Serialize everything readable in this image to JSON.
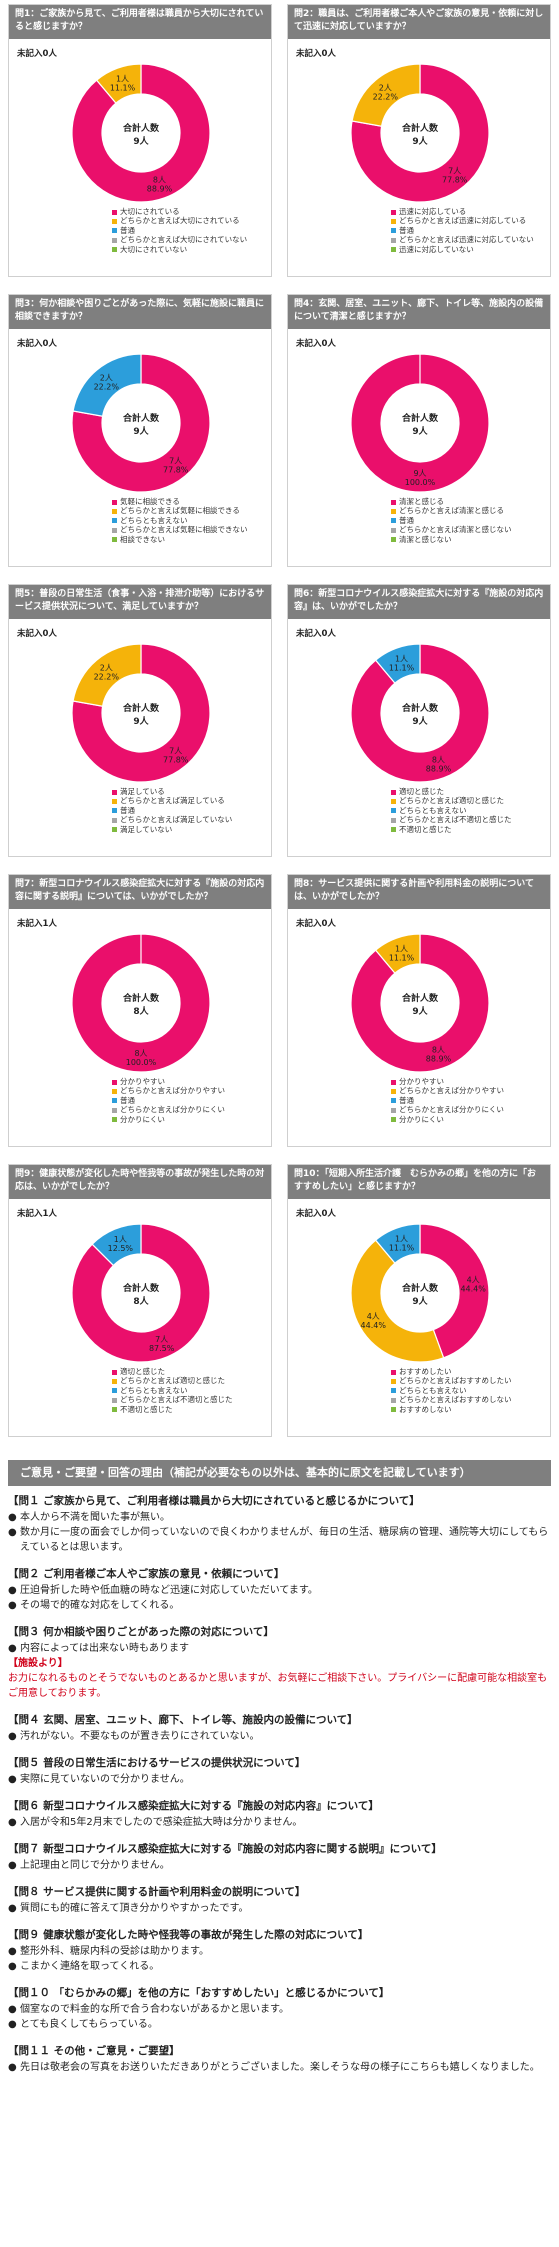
{
  "colors": {
    "pink": "#ea0f6b",
    "gold": "#f5b30a",
    "blue": "#2c9edb",
    "grey": "#a5a5a5",
    "green": "#7fba3e"
  },
  "total_label": "合計人数",
  "chart_data": [
    {
      "type": "pie",
      "title": "問1：ご家族から見て、ご利用者様は職員から大切にされていると感じますか？",
      "unrecorded": "未記入0人",
      "total": "9人",
      "categories": [
        "大切にされている",
        "どちらかと言えば大切にされている",
        "普通",
        "どちらかと言えば大切にされていない",
        "大切にされていない"
      ],
      "values": [
        8,
        1,
        0,
        0,
        0
      ],
      "value_labels": [
        "8人",
        "1人",
        "",
        "",
        ""
      ],
      "pct_labels": [
        "88.9%",
        "11.1%",
        "",
        "",
        ""
      ]
    },
    {
      "type": "pie",
      "title": "問2：職員は、ご利用者様ご本人やご家族の意見・依頼に対して迅速に対応していますか？",
      "unrecorded": "未記入0人",
      "total": "9人",
      "categories": [
        "迅速に対応している",
        "どちらかと言えば迅速に対応している",
        "普通",
        "どちらかと言えば迅速に対応していない",
        "迅速に対応していない"
      ],
      "values": [
        7,
        2,
        0,
        0,
        0
      ],
      "value_labels": [
        "7人",
        "2人",
        "",
        "",
        ""
      ],
      "pct_labels": [
        "77.8%",
        "22.2%",
        "",
        "",
        ""
      ]
    },
    {
      "type": "pie",
      "title": "問3：何か相談や困りごとがあった際に、気軽に施設に職員に相談できますか？",
      "unrecorded": "未記入0人",
      "total": "9人",
      "categories": [
        "気軽に相談できる",
        "どちらかと言えば気軽に相談できる",
        "どちらとも言えない",
        "どちらかと言えば気軽に相談できない",
        "相談できない"
      ],
      "values": [
        7,
        0,
        2,
        0,
        0
      ],
      "value_labels": [
        "7人",
        "",
        "2人",
        "",
        ""
      ],
      "pct_labels": [
        "77.8%",
        "",
        "22.2%",
        "",
        ""
      ]
    },
    {
      "type": "pie",
      "title": "問4：玄関、居室、ユニット、廊下、トイレ等、施設内の設備について清潔と感じますか？",
      "unrecorded": "未記入0人",
      "total": "9人",
      "categories": [
        "清潔と感じる",
        "どちらかと言えば清潔と感じる",
        "普通",
        "どちらかと言えば清潔と感じない",
        "清潔と感じない"
      ],
      "values": [
        9,
        0,
        0,
        0,
        0
      ],
      "value_labels": [
        "9人",
        "",
        "",
        "",
        ""
      ],
      "pct_labels": [
        "100.0%",
        "",
        "",
        "",
        ""
      ]
    },
    {
      "type": "pie",
      "title": "問5：普段の日常生活（食事・入浴・排泄介助等）におけるサービス提供状況について、満足していますか？",
      "unrecorded": "未記入0人",
      "total": "9人",
      "categories": [
        "満足している",
        "どちらかと言えば満足している",
        "普通",
        "どちらかと言えば満足していない",
        "満足していない"
      ],
      "values": [
        7,
        2,
        0,
        0,
        0
      ],
      "value_labels": [
        "7人",
        "2人",
        "",
        "",
        ""
      ],
      "pct_labels": [
        "77.8%",
        "22.2%",
        "",
        "",
        ""
      ]
    },
    {
      "type": "pie",
      "title": "問6：新型コロナウイルス感染症拡大に対する『施設の対応内容』は、いかがでしたか？",
      "unrecorded": "未記入0人",
      "total": "9人",
      "categories": [
        "適切と感じた",
        "どちらかと言えば適切と感じた",
        "どちらとも言えない",
        "どちらかと言えば不適切と感じた",
        "不適切と感じた"
      ],
      "values": [
        8,
        0,
        1,
        0,
        0
      ],
      "value_labels": [
        "8人",
        "",
        "1人",
        "",
        ""
      ],
      "pct_labels": [
        "88.9%",
        "",
        "11.1%",
        "",
        ""
      ]
    },
    {
      "type": "pie",
      "title": "問7：新型コロナウイルス感染症拡大に対する『施設の対応内容に関する説明』については、いかがでしたか？",
      "unrecorded": "未記入1人",
      "total": "8人",
      "categories": [
        "分かりやすい",
        "どちらかと言えば分かりやすい",
        "普通",
        "どちらかと言えば分かりにくい",
        "分かりにくい"
      ],
      "values": [
        8,
        0,
        0,
        0,
        0
      ],
      "value_labels": [
        "8人",
        "",
        "",
        "",
        ""
      ],
      "pct_labels": [
        "100.0%",
        "",
        "",
        "",
        ""
      ]
    },
    {
      "type": "pie",
      "title": "問8：サービス提供に関する計画や利用料金の説明については、いかがでしたか？",
      "unrecorded": "未記入0人",
      "total": "9人",
      "categories": [
        "分かりやすい",
        "どちらかと言えば分かりやすい",
        "普通",
        "どちらかと言えば分かりにくい",
        "分かりにくい"
      ],
      "values": [
        8,
        1,
        0,
        0,
        0
      ],
      "value_labels": [
        "8人",
        "1人",
        "",
        "",
        ""
      ],
      "pct_labels": [
        "88.9%",
        "11.1%",
        "",
        "",
        ""
      ]
    },
    {
      "type": "pie",
      "title": "問9：健康状態が変化した時や怪我等の事故が発生した時の対応は、いかがでしたか？",
      "unrecorded": "未記入1人",
      "total": "8人",
      "categories": [
        "適切と感じた",
        "どちらかと言えば適切と感じた",
        "どちらとも言えない",
        "どちらかと言えば不適切と感じた",
        "不適切と感じた"
      ],
      "values": [
        7,
        0,
        1,
        0,
        0
      ],
      "value_labels": [
        "7人",
        "",
        "1人",
        "",
        ""
      ],
      "pct_labels": [
        "87.5%",
        "",
        "12.5%",
        "",
        ""
      ]
    },
    {
      "type": "pie",
      "title": "問10：「短期入所生活介護　むらかみの郷」を他の方に「おすすめしたい」と感じますか？",
      "unrecorded": "未記入0人",
      "total": "9人",
      "categories": [
        "おすすめしたい",
        "どちらかと言えばおすすめしたい",
        "どちらとも言えない",
        "どちらかと言えばおすすめしない",
        "おすすめしない"
      ],
      "values": [
        4,
        4,
        1,
        0,
        0
      ],
      "value_labels": [
        "4人",
        "4人",
        "1人",
        "",
        ""
      ],
      "pct_labels": [
        "44.4%",
        "44.4%",
        "11.1%",
        "",
        ""
      ]
    }
  ],
  "comments": {
    "header": "ご意見・ご要望・回答の理由（補記が必要なもの以外は、基本的に原文を記載しています）",
    "sections": [
      {
        "title": "【問１ ご家族から見て、ご利用者様は職員から大切にされていると感じるかについて】",
        "items": [
          "本人から不満を聞いた事が無い。",
          "数か月に一度の面会でしか伺っていないので良くわかりませんが、毎日の生活、糖尿病の管理、通院等大切にしてもらえているとは思います。"
        ]
      },
      {
        "title": "【問２ ご利用者様ご本人やご家族の意見・依頼について】",
        "items": [
          "圧迫骨折した時や低血糖の時など迅速に対応していただいてます。",
          "その場で的確な対応をしてくれる。"
        ]
      },
      {
        "title": "【問３ 何か相談や困りごとがあった際の対応について】",
        "items": [
          "内容によっては出来ない時もあります"
        ],
        "facility_label": "【施設より】",
        "facility_text": "お力になれるものとそうでないものとあるかと思いますが、お気軽にご相談下さい。プライバシーに配慮可能な相談室もご用意しております。"
      },
      {
        "title": "【問４ 玄関、居室、ユニット、廊下、トイレ等、施設内の設備について】",
        "items": [
          "汚れがない。不要なものが置き去りにされていない。"
        ]
      },
      {
        "title": "【問５ 普段の日常生活におけるサービスの提供状況について】",
        "items": [
          "実際に見ていないので分かりません。"
        ]
      },
      {
        "title": "【問６ 新型コロナウイルス感染症拡大に対する『施設の対応内容』について】",
        "items": [
          "入居が令和5年2月末でしたので感染症拡大時は分かりません。"
        ]
      },
      {
        "title": "【問７ 新型コロナウイルス感染症拡大に対する『施設の対応内容に関する説明』について】",
        "items": [
          "上記理由と同じで分かりません。"
        ]
      },
      {
        "title": "【問８ サービス提供に関する計画や利用料金の説明について】",
        "items": [
          "質問にも的確に答えて頂き分かりやすかったです。"
        ]
      },
      {
        "title": "【問９ 健康状態が変化した時や怪我等の事故が発生した際の対応について】",
        "items": [
          "整形外科、糖尿内科の受診は助かります。",
          "こまかく連絡を取ってくれる。"
        ]
      },
      {
        "title": "【問１０ 「むらかみの郷」を他の方に「おすすめしたい」と感じるかについて】",
        "items": [
          "個室なので料金的な所で合う合わないがあるかと思います。",
          "とても良くしてもらっている。"
        ]
      },
      {
        "title": "【問１１ その他・ご意見・ご要望】",
        "items": [
          "先日は敬老会の写真をお送りいただきありがとうございました。楽しそうな母の様子にこちらも嬉しくなりました。"
        ]
      }
    ]
  }
}
